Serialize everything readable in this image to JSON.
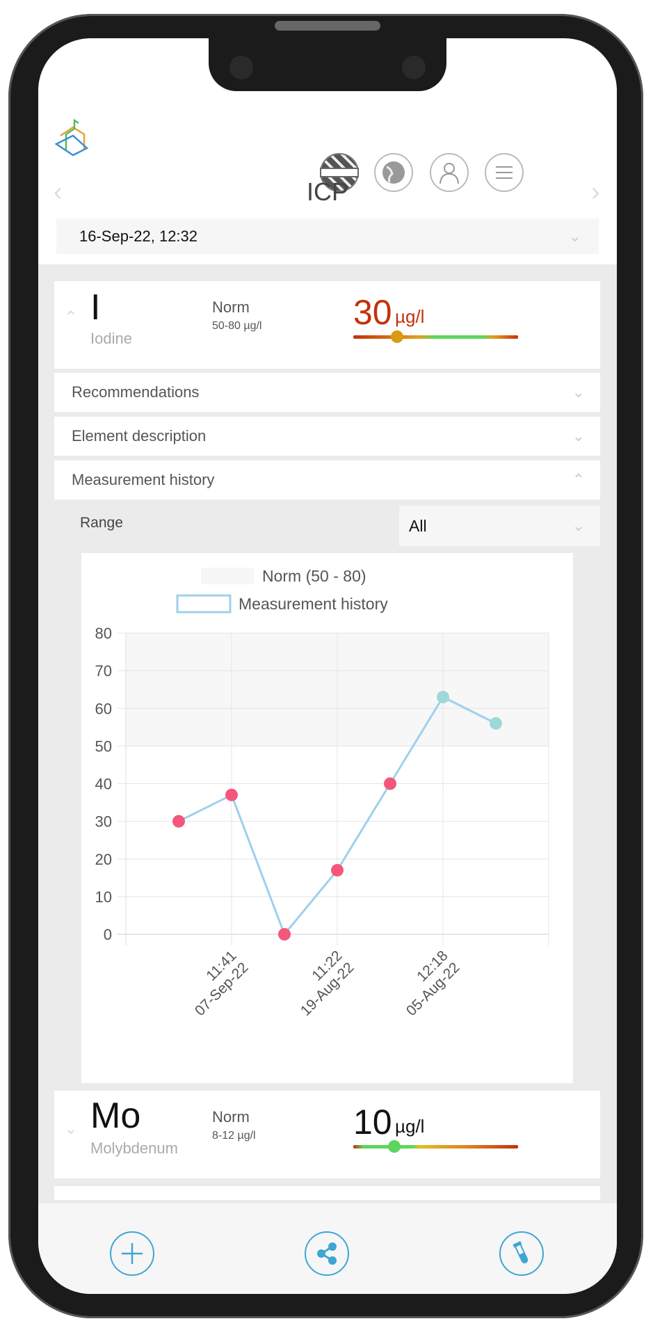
{
  "header": {
    "title": "ICP",
    "date": "16-Sep-22, 12:32",
    "icons": [
      "uk-flag-icon",
      "globe-icon",
      "user-icon",
      "menu-icon"
    ]
  },
  "elements": [
    {
      "symbol": "I",
      "name": "Iodine",
      "norm_label": "Norm",
      "norm_range": "50-80 µg/l",
      "value": "30",
      "unit": "µg/l",
      "value_color": "#c4310b",
      "marker_fraction": 0.34,
      "marker_color": "#d99a14"
    },
    {
      "symbol": "Mo",
      "name": "Molybdenum",
      "norm_label": "Norm",
      "norm_range": "8-12 µg/l",
      "value": "10",
      "unit": "µg/l",
      "value_color": "#111111",
      "marker_fraction": 0.25,
      "marker_color": "#5cd65c"
    }
  ],
  "sections": {
    "recommendations": "Recommendations",
    "description": "Element description",
    "history": "Measurement history"
  },
  "range": {
    "label": "Range",
    "value": "All"
  },
  "chart_data": {
    "type": "line",
    "legend": [
      "Norm (50 - 80)",
      "Measurement history"
    ],
    "ylim": [
      0,
      80
    ],
    "yticks": [
      0,
      10,
      20,
      30,
      40,
      50,
      60,
      70,
      80
    ],
    "norm_band": [
      50,
      80
    ],
    "categories": [
      "",
      "11:41|07-Sep-22",
      "",
      "11:22|19-Aug-22",
      "",
      "12:18|05-Aug-22",
      ""
    ],
    "values": [
      30,
      37,
      0,
      17,
      40,
      63,
      56
    ],
    "colors": {
      "line": "#9fd0ee",
      "out_of_norm": "#f4577b",
      "in_norm": "#9ed9d9",
      "band": "#f7f7f7"
    }
  },
  "footer": {
    "icons": [
      "add-icon",
      "share-icon",
      "test-tube-icon"
    ]
  },
  "accent": "#3ea6d3"
}
